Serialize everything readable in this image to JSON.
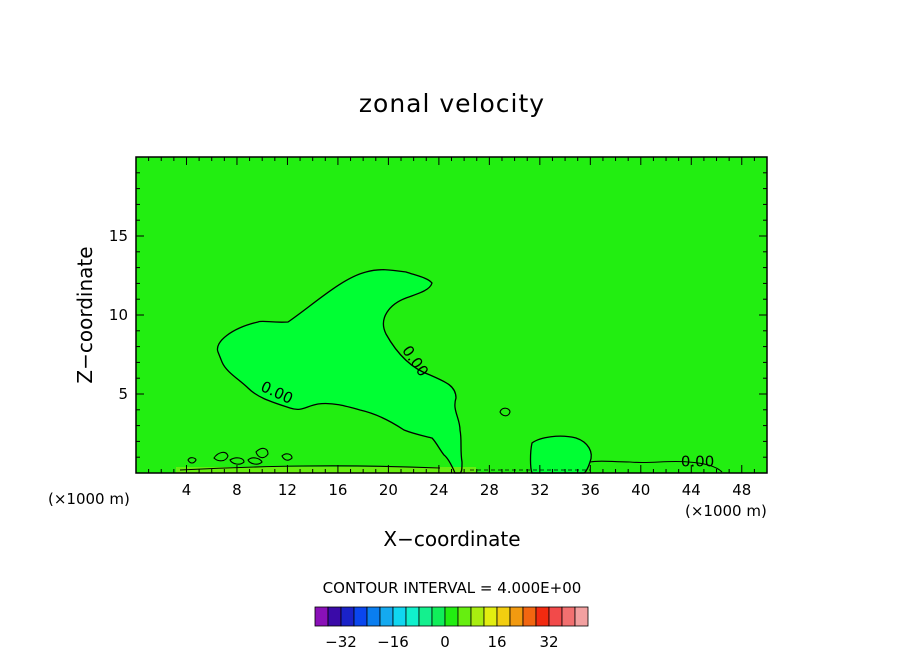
{
  "chart_data": {
    "type": "contour",
    "title": "zonal velocity",
    "xlabel": "X−coordinate",
    "ylabel": "Z−coordinate",
    "x_unit_left": "(×1000 m)",
    "x_unit_right": "(×1000 m)",
    "xlim": [
      0,
      50
    ],
    "ylim": [
      0,
      20
    ],
    "x_ticks": [
      4,
      8,
      12,
      16,
      20,
      24,
      28,
      32,
      36,
      40,
      44,
      48
    ],
    "x_tick_labels": [
      "4",
      "8",
      "12",
      "16",
      "20",
      "24",
      "28",
      "32",
      "36",
      "40",
      "44",
      "48"
    ],
    "y_ticks": [
      5,
      10,
      15
    ],
    "y_tick_labels": [
      "5",
      "10",
      "15"
    ],
    "background_color": "#22ee11",
    "negative_region_color": "#00ff33",
    "contour_labels": [
      {
        "text": "0.00",
        "x": 11.0,
        "y": 4.8,
        "angle": 25
      },
      {
        "text": "0.00",
        "x": 21.8,
        "y": 6.9,
        "angle": 55
      },
      {
        "text": "0.00",
        "x": 44.5,
        "y": 0.4,
        "angle": 0
      }
    ],
    "contour_interval_text": "CONTOUR INTERVAL =  4.000E+00",
    "colorbar": {
      "colors": [
        "#8a10b8",
        "#3a0aa8",
        "#1a22c8",
        "#0a46ee",
        "#0a7ef0",
        "#14aaf0",
        "#10d6f0",
        "#10f0cc",
        "#14f08e",
        "#10ee5a",
        "#22ee11",
        "#66ee10",
        "#a8ee10",
        "#e2ee10",
        "#f2ce10",
        "#f29a10",
        "#f26610",
        "#f22a10",
        "#f24a4a",
        "#f27070",
        "#f2a0a0"
      ],
      "tick_labels": [
        "−32",
        "−16",
        "0",
        "16",
        "32"
      ]
    }
  }
}
